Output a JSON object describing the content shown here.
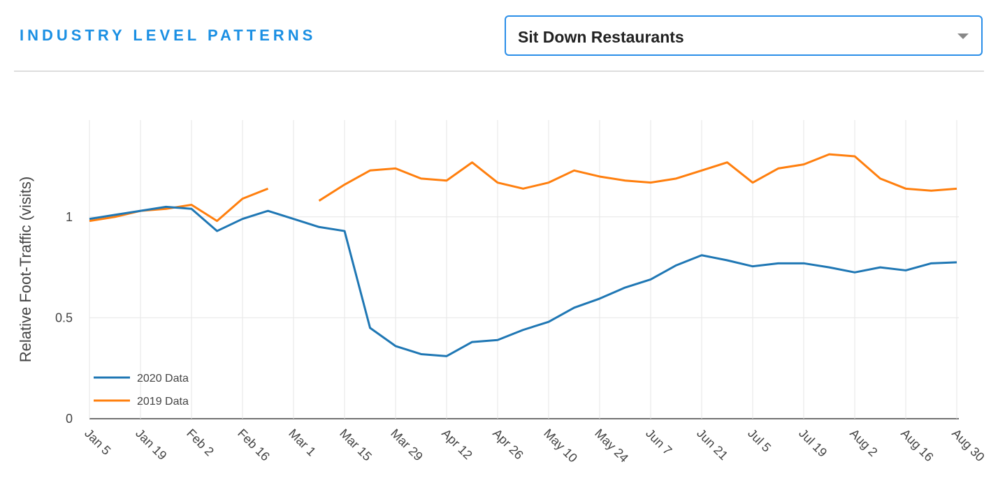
{
  "header": {
    "title": "INDUSTRY LEVEL PATTERNS",
    "dropdown": "Sit Down Restaurants"
  },
  "chart_data": {
    "type": "line",
    "y_label": "Relative Foot-Traffic (visits)",
    "categories": [
      "Jan 5",
      null,
      "Jan 19",
      null,
      "Feb 2",
      null,
      "Feb 16",
      null,
      "Mar 1",
      null,
      "Mar 15",
      null,
      "Mar 29",
      null,
      "Apr 12",
      null,
      "Apr 26",
      null,
      "May 10",
      null,
      "May 24",
      null,
      "Jun 7",
      null,
      "Jun 21",
      null,
      "Jul 5",
      null,
      "Jul 19",
      null,
      "Aug 2",
      null,
      "Aug 16",
      null,
      "Aug 30"
    ],
    "series": [
      {
        "name": "2020 Data",
        "color": "#1f77b4",
        "values": [
          0.99,
          1.01,
          1.03,
          1.05,
          1.04,
          0.93,
          0.99,
          1.03,
          0.99,
          0.95,
          0.93,
          0.45,
          0.36,
          0.32,
          0.31,
          0.38,
          0.39,
          0.44,
          0.48,
          0.55,
          0.595,
          0.65,
          0.69,
          0.76,
          0.81,
          0.785,
          0.755,
          0.77,
          0.77,
          0.75,
          0.725,
          0.75,
          0.735,
          0.77,
          0.775
        ]
      },
      {
        "name": "2019 Data",
        "color": "#ff7f0e",
        "values": [
          0.98,
          1.0,
          1.03,
          1.04,
          1.06,
          0.98,
          1.09,
          1.14,
          null,
          1.08,
          1.16,
          1.23,
          1.24,
          1.19,
          1.18,
          1.27,
          1.17,
          1.14,
          1.17,
          1.23,
          1.2,
          1.18,
          1.17,
          1.19,
          1.23,
          1.27,
          1.17,
          1.24,
          1.26,
          1.31,
          1.3,
          1.19,
          1.14,
          1.13,
          1.14
        ]
      }
    ],
    "ylim": [
      0,
      1.48
    ],
    "yticks": [
      0,
      0.5,
      1
    ],
    "grid": true,
    "legend": "lower left"
  }
}
